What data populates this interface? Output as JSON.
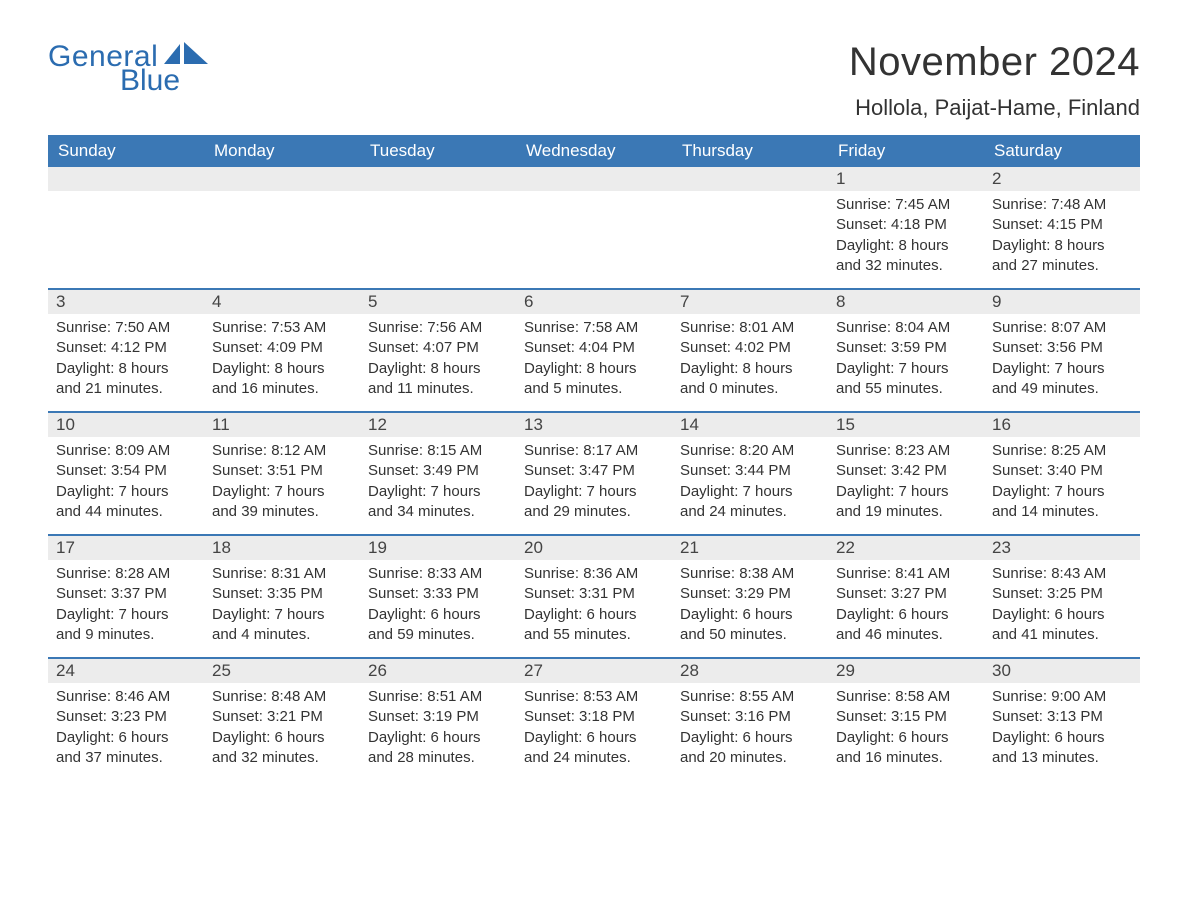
{
  "logo": {
    "text_general": "General",
    "text_blue": "Blue",
    "icon_color": "#2b6cb0"
  },
  "title": {
    "month": "November 2024",
    "location": "Hollola, Paijat-Hame, Finland"
  },
  "colors": {
    "header_bg": "#3b78b5",
    "header_text": "#ffffff",
    "strip_bg": "#ececec",
    "strip_border": "#3b78b5",
    "body_text": "#333333",
    "page_bg": "#ffffff"
  },
  "typography": {
    "month_title_fontsize": 40,
    "location_fontsize": 22,
    "weekday_fontsize": 17,
    "daynum_fontsize": 17,
    "body_fontsize": 15,
    "logo_fontsize": 30
  },
  "weekdays": [
    "Sunday",
    "Monday",
    "Tuesday",
    "Wednesday",
    "Thursday",
    "Friday",
    "Saturday"
  ],
  "weeks": [
    [
      null,
      null,
      null,
      null,
      null,
      {
        "n": "1",
        "sunrise": "Sunrise: 7:45 AM",
        "sunset": "Sunset: 4:18 PM",
        "day1": "Daylight: 8 hours",
        "day2": "and 32 minutes."
      },
      {
        "n": "2",
        "sunrise": "Sunrise: 7:48 AM",
        "sunset": "Sunset: 4:15 PM",
        "day1": "Daylight: 8 hours",
        "day2": "and 27 minutes."
      }
    ],
    [
      {
        "n": "3",
        "sunrise": "Sunrise: 7:50 AM",
        "sunset": "Sunset: 4:12 PM",
        "day1": "Daylight: 8 hours",
        "day2": "and 21 minutes."
      },
      {
        "n": "4",
        "sunrise": "Sunrise: 7:53 AM",
        "sunset": "Sunset: 4:09 PM",
        "day1": "Daylight: 8 hours",
        "day2": "and 16 minutes."
      },
      {
        "n": "5",
        "sunrise": "Sunrise: 7:56 AM",
        "sunset": "Sunset: 4:07 PM",
        "day1": "Daylight: 8 hours",
        "day2": "and 11 minutes."
      },
      {
        "n": "6",
        "sunrise": "Sunrise: 7:58 AM",
        "sunset": "Sunset: 4:04 PM",
        "day1": "Daylight: 8 hours",
        "day2": "and 5 minutes."
      },
      {
        "n": "7",
        "sunrise": "Sunrise: 8:01 AM",
        "sunset": "Sunset: 4:02 PM",
        "day1": "Daylight: 8 hours",
        "day2": "and 0 minutes."
      },
      {
        "n": "8",
        "sunrise": "Sunrise: 8:04 AM",
        "sunset": "Sunset: 3:59 PM",
        "day1": "Daylight: 7 hours",
        "day2": "and 55 minutes."
      },
      {
        "n": "9",
        "sunrise": "Sunrise: 8:07 AM",
        "sunset": "Sunset: 3:56 PM",
        "day1": "Daylight: 7 hours",
        "day2": "and 49 minutes."
      }
    ],
    [
      {
        "n": "10",
        "sunrise": "Sunrise: 8:09 AM",
        "sunset": "Sunset: 3:54 PM",
        "day1": "Daylight: 7 hours",
        "day2": "and 44 minutes."
      },
      {
        "n": "11",
        "sunrise": "Sunrise: 8:12 AM",
        "sunset": "Sunset: 3:51 PM",
        "day1": "Daylight: 7 hours",
        "day2": "and 39 minutes."
      },
      {
        "n": "12",
        "sunrise": "Sunrise: 8:15 AM",
        "sunset": "Sunset: 3:49 PM",
        "day1": "Daylight: 7 hours",
        "day2": "and 34 minutes."
      },
      {
        "n": "13",
        "sunrise": "Sunrise: 8:17 AM",
        "sunset": "Sunset: 3:47 PM",
        "day1": "Daylight: 7 hours",
        "day2": "and 29 minutes."
      },
      {
        "n": "14",
        "sunrise": "Sunrise: 8:20 AM",
        "sunset": "Sunset: 3:44 PM",
        "day1": "Daylight: 7 hours",
        "day2": "and 24 minutes."
      },
      {
        "n": "15",
        "sunrise": "Sunrise: 8:23 AM",
        "sunset": "Sunset: 3:42 PM",
        "day1": "Daylight: 7 hours",
        "day2": "and 19 minutes."
      },
      {
        "n": "16",
        "sunrise": "Sunrise: 8:25 AM",
        "sunset": "Sunset: 3:40 PM",
        "day1": "Daylight: 7 hours",
        "day2": "and 14 minutes."
      }
    ],
    [
      {
        "n": "17",
        "sunrise": "Sunrise: 8:28 AM",
        "sunset": "Sunset: 3:37 PM",
        "day1": "Daylight: 7 hours",
        "day2": "and 9 minutes."
      },
      {
        "n": "18",
        "sunrise": "Sunrise: 8:31 AM",
        "sunset": "Sunset: 3:35 PM",
        "day1": "Daylight: 7 hours",
        "day2": "and 4 minutes."
      },
      {
        "n": "19",
        "sunrise": "Sunrise: 8:33 AM",
        "sunset": "Sunset: 3:33 PM",
        "day1": "Daylight: 6 hours",
        "day2": "and 59 minutes."
      },
      {
        "n": "20",
        "sunrise": "Sunrise: 8:36 AM",
        "sunset": "Sunset: 3:31 PM",
        "day1": "Daylight: 6 hours",
        "day2": "and 55 minutes."
      },
      {
        "n": "21",
        "sunrise": "Sunrise: 8:38 AM",
        "sunset": "Sunset: 3:29 PM",
        "day1": "Daylight: 6 hours",
        "day2": "and 50 minutes."
      },
      {
        "n": "22",
        "sunrise": "Sunrise: 8:41 AM",
        "sunset": "Sunset: 3:27 PM",
        "day1": "Daylight: 6 hours",
        "day2": "and 46 minutes."
      },
      {
        "n": "23",
        "sunrise": "Sunrise: 8:43 AM",
        "sunset": "Sunset: 3:25 PM",
        "day1": "Daylight: 6 hours",
        "day2": "and 41 minutes."
      }
    ],
    [
      {
        "n": "24",
        "sunrise": "Sunrise: 8:46 AM",
        "sunset": "Sunset: 3:23 PM",
        "day1": "Daylight: 6 hours",
        "day2": "and 37 minutes."
      },
      {
        "n": "25",
        "sunrise": "Sunrise: 8:48 AM",
        "sunset": "Sunset: 3:21 PM",
        "day1": "Daylight: 6 hours",
        "day2": "and 32 minutes."
      },
      {
        "n": "26",
        "sunrise": "Sunrise: 8:51 AM",
        "sunset": "Sunset: 3:19 PM",
        "day1": "Daylight: 6 hours",
        "day2": "and 28 minutes."
      },
      {
        "n": "27",
        "sunrise": "Sunrise: 8:53 AM",
        "sunset": "Sunset: 3:18 PM",
        "day1": "Daylight: 6 hours",
        "day2": "and 24 minutes."
      },
      {
        "n": "28",
        "sunrise": "Sunrise: 8:55 AM",
        "sunset": "Sunset: 3:16 PM",
        "day1": "Daylight: 6 hours",
        "day2": "and 20 minutes."
      },
      {
        "n": "29",
        "sunrise": "Sunrise: 8:58 AM",
        "sunset": "Sunset: 3:15 PM",
        "day1": "Daylight: 6 hours",
        "day2": "and 16 minutes."
      },
      {
        "n": "30",
        "sunrise": "Sunrise: 9:00 AM",
        "sunset": "Sunset: 3:13 PM",
        "day1": "Daylight: 6 hours",
        "day2": "and 13 minutes."
      }
    ]
  ]
}
